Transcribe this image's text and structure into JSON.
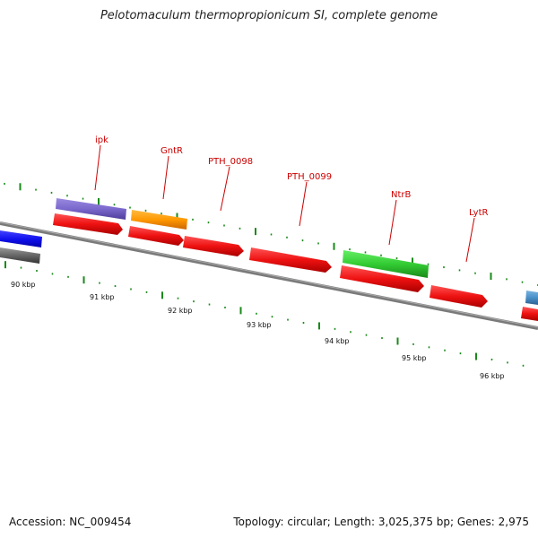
{
  "title": "Pelotomaculum thermopropionicum SI, complete genome",
  "footer": {
    "accession": "Accession: NC_009454",
    "summary": "Topology: circular; Length: 3,025,375 bp; Genes: 2,975"
  },
  "colors": {
    "backbone": "#7a7a7a",
    "tick": "#1a8a1a",
    "gene_label": "#cc0000",
    "cds_red": "#ee1111",
    "purple": "#7b68cc",
    "orange": "#ff9900",
    "green": "#33cc33",
    "blue": "#1111ee",
    "gray": "#666666",
    "steel": "#4a90c8"
  },
  "scale": {
    "tick_labels": [
      "90 kbp",
      "91 kbp",
      "92 kbp",
      "93 kbp",
      "94 kbp",
      "95 kbp",
      "96 kbp"
    ]
  },
  "gene_labels": [
    "ipk",
    "GntR",
    "PTH_0098",
    "PTH_0099",
    "NtrB",
    "LytR"
  ]
}
